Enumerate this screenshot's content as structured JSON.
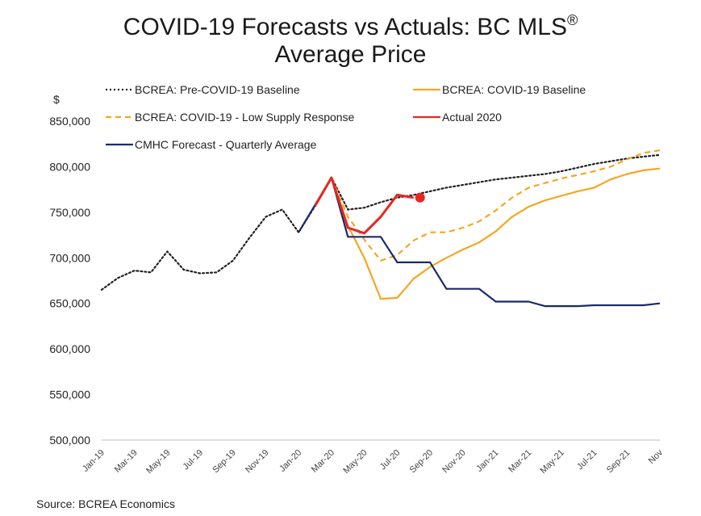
{
  "title_line1": "COVID-19 Forecasts vs Actuals: BC MLS",
  "title_reg": "®",
  "title_line2": "Average Price",
  "source": "Source: BCREA Economics",
  "chart_data": {
    "type": "line",
    "title": "COVID-19 Forecasts vs Actuals: BC MLS® Average Price",
    "ylabel": "$",
    "xlabel": "",
    "ylim": [
      500000,
      850000
    ],
    "yticks": [
      500000,
      550000,
      600000,
      650000,
      700000,
      750000,
      800000,
      850000
    ],
    "ytick_labels": [
      "500,000",
      "550,000",
      "600,000",
      "650,000",
      "700,000",
      "750,000",
      "800,000",
      "850,000"
    ],
    "x_months": [
      "Jan-19",
      "Feb-19",
      "Mar-19",
      "Apr-19",
      "May-19",
      "Jun-19",
      "Jul-19",
      "Aug-19",
      "Sep-19",
      "Oct-19",
      "Nov-19",
      "Dec-19",
      "Jan-20",
      "Feb-20",
      "Mar-20",
      "Apr-20",
      "May-20",
      "Jun-20",
      "Jul-20",
      "Aug-20",
      "Sep-20",
      "Oct-20",
      "Nov-20",
      "Dec-20",
      "Jan-21",
      "Feb-21",
      "Mar-21",
      "Apr-21",
      "May-21",
      "Jun-21",
      "Jul-21",
      "Aug-21",
      "Sep-21",
      "Oct-21",
      "Nov-21"
    ],
    "xtick_labels": [
      "Jan-19",
      "Mar-19",
      "May-19",
      "Jul-19",
      "Sep-19",
      "Nov-19",
      "Jan-20",
      "Mar-20",
      "May-20",
      "Jul-20",
      "Sep-20",
      "Nov-20",
      "Jan-21",
      "Mar-21",
      "May-21",
      "Jul-21",
      "Sep-21",
      "Nov"
    ],
    "legend_position": "top",
    "series": [
      {
        "name": "BCREA: Pre-COVID-19 Baseline",
        "color": "#222222",
        "style": "dotted",
        "x": [
          "Jan-19",
          "Feb-19",
          "Mar-19",
          "Apr-19",
          "May-19",
          "Jun-19",
          "Jul-19",
          "Aug-19",
          "Sep-19",
          "Oct-19",
          "Nov-19",
          "Dec-19",
          "Jan-20",
          "Feb-20",
          "Mar-20",
          "Apr-20",
          "May-20",
          "Jun-20",
          "Jul-20",
          "Aug-20",
          "Sep-20",
          "Oct-20",
          "Nov-20",
          "Dec-20",
          "Jan-21",
          "Feb-21",
          "Mar-21",
          "Apr-21",
          "May-21",
          "Jun-21",
          "Jul-21",
          "Aug-21",
          "Sep-21",
          "Oct-21",
          "Nov-21"
        ],
        "values": [
          665000,
          678000,
          686000,
          684000,
          707000,
          687000,
          683000,
          684000,
          697000,
          722000,
          745000,
          753000,
          728000,
          757000,
          788000,
          753000,
          755000,
          761000,
          766000,
          769000,
          773000,
          777000,
          780000,
          783000,
          786000,
          788000,
          790000,
          792000,
          795000,
          799000,
          803000,
          806000,
          809000,
          811000,
          813000
        ]
      },
      {
        "name": "BCREA: COVID-19 Baseline",
        "color": "#F5A623",
        "style": "solid",
        "x": [
          "Mar-20",
          "Apr-20",
          "May-20",
          "Jun-20",
          "Jul-20",
          "Aug-20",
          "Sep-20",
          "Oct-20",
          "Nov-20",
          "Dec-20",
          "Jan-21",
          "Feb-21",
          "Mar-21",
          "Apr-21",
          "May-21",
          "Jun-21",
          "Jul-21",
          "Aug-21",
          "Sep-21",
          "Oct-21",
          "Nov-21"
        ],
        "values": [
          788000,
          735000,
          700000,
          655000,
          656000,
          677000,
          690000,
          700000,
          709000,
          717000,
          729000,
          745000,
          756000,
          763000,
          768000,
          773000,
          777000,
          786000,
          792000,
          796000,
          798000
        ]
      },
      {
        "name": "BCREA: COVID-19 - Low Supply Response",
        "color": "#F5A623",
        "style": "dashed",
        "x": [
          "Mar-20",
          "Apr-20",
          "May-20",
          "Jun-20",
          "Jul-20",
          "Aug-20",
          "Sep-20",
          "Oct-20",
          "Nov-20",
          "Dec-20",
          "Jan-21",
          "Feb-21",
          "Mar-21",
          "Apr-21",
          "May-21",
          "Jun-21",
          "Jul-21",
          "Aug-21",
          "Sep-21",
          "Oct-21",
          "Nov-21"
        ],
        "values": [
          788000,
          745000,
          720000,
          697000,
          703000,
          719000,
          728000,
          728000,
          733000,
          740000,
          752000,
          766000,
          777000,
          782000,
          787000,
          791000,
          795000,
          800000,
          808000,
          815000,
          818000
        ]
      },
      {
        "name": "Actual 2020",
        "color": "#E8261F",
        "style": "solid",
        "x": [
          "Feb-20",
          "Mar-20",
          "Apr-20",
          "May-20",
          "Jun-20",
          "Jul-20",
          "Aug-20"
        ],
        "values": [
          757000,
          788000,
          733000,
          727000,
          745000,
          769000,
          766000
        ],
        "marker_last": true
      },
      {
        "name": "CMHC Forecast - Quarterly Average",
        "color": "#1B2A6B",
        "style": "solid",
        "x": [
          "Jan-20",
          "Mar-20",
          "Apr-20",
          "Jun-20",
          "Jul-20",
          "Sep-20",
          "Oct-20",
          "Dec-20",
          "Jan-21",
          "Mar-21",
          "Apr-21",
          "Jun-21",
          "Jul-21",
          "Sep-21",
          "Oct-21",
          "Nov-21"
        ],
        "values": [
          728000,
          788000,
          723000,
          723000,
          695000,
          695000,
          666000,
          666000,
          652000,
          652000,
          647000,
          647000,
          648000,
          648000,
          648000,
          650000
        ]
      }
    ]
  }
}
